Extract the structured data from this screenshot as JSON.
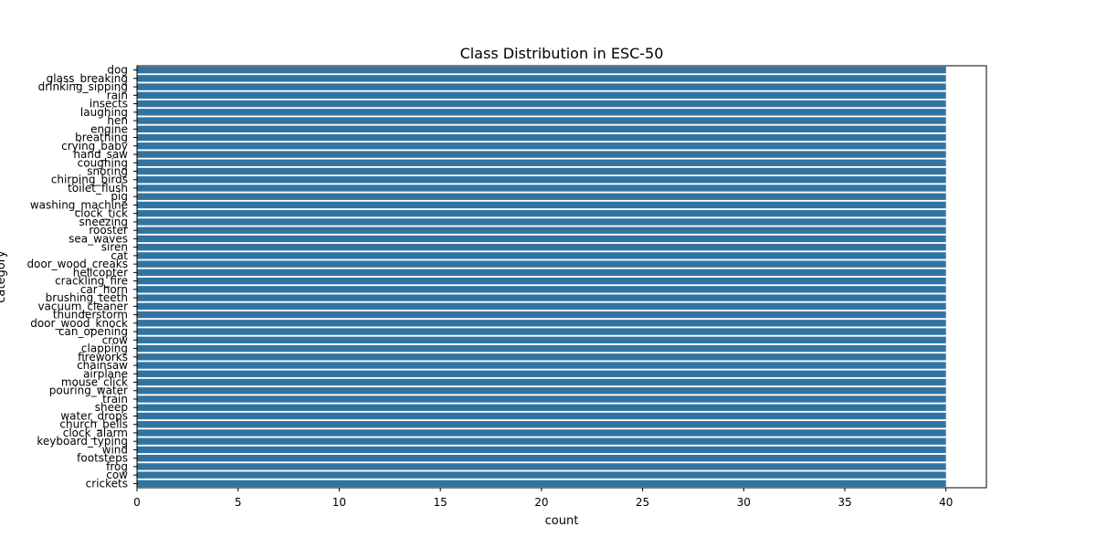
{
  "chart_data": {
    "type": "bar",
    "orientation": "horizontal",
    "title": "Class Distribution in ESC-50",
    "xlabel": "count",
    "ylabel": "category",
    "xlim": [
      0,
      42
    ],
    "xticks": [
      0,
      5,
      10,
      15,
      20,
      25,
      30,
      35,
      40
    ],
    "grid": false,
    "bar_color": "#3274a1",
    "categories": [
      "dog",
      "glass_breaking",
      "drinking_sipping",
      "rain",
      "insects",
      "laughing",
      "hen",
      "engine",
      "breathing",
      "crying_baby",
      "hand_saw",
      "coughing",
      "snoring",
      "chirping_birds",
      "toilet_flush",
      "pig",
      "washing_machine",
      "clock_tick",
      "sneezing",
      "rooster",
      "sea_waves",
      "siren",
      "cat",
      "door_wood_creaks",
      "helicopter",
      "crackling_fire",
      "car_horn",
      "brushing_teeth",
      "vacuum_cleaner",
      "thunderstorm",
      "door_wood_knock",
      "can_opening",
      "crow",
      "clapping",
      "fireworks",
      "chainsaw",
      "airplane",
      "mouse_click",
      "pouring_water",
      "train",
      "sheep",
      "water_drops",
      "church_bells",
      "clock_alarm",
      "keyboard_typing",
      "wind",
      "footsteps",
      "frog",
      "cow",
      "crickets"
    ],
    "values": [
      40,
      40,
      40,
      40,
      40,
      40,
      40,
      40,
      40,
      40,
      40,
      40,
      40,
      40,
      40,
      40,
      40,
      40,
      40,
      40,
      40,
      40,
      40,
      40,
      40,
      40,
      40,
      40,
      40,
      40,
      40,
      40,
      40,
      40,
      40,
      40,
      40,
      40,
      40,
      40,
      40,
      40,
      40,
      40,
      40,
      40,
      40,
      40,
      40,
      40
    ]
  }
}
